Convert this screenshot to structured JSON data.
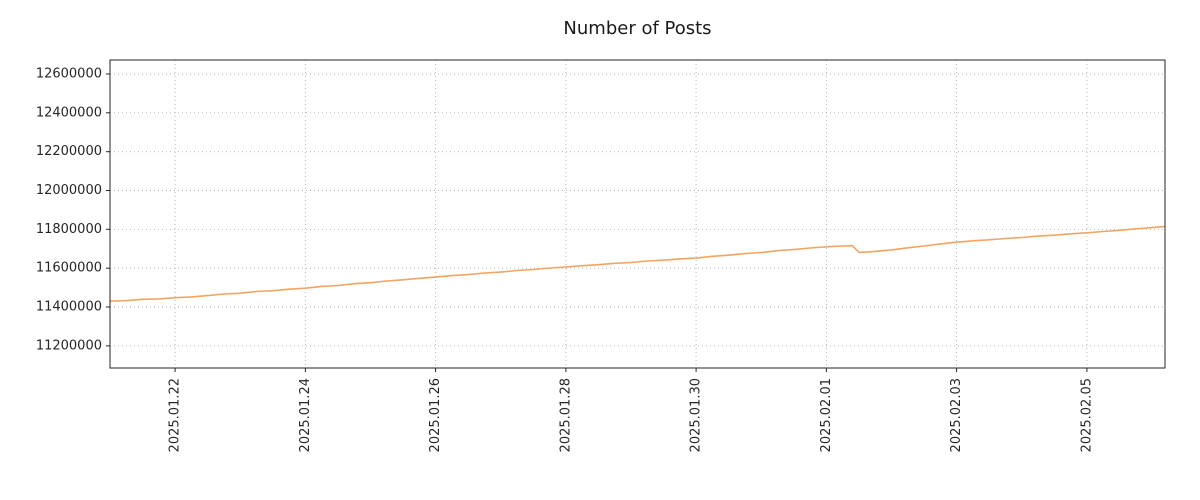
{
  "chart_data": {
    "type": "line",
    "title": "Number of Posts",
    "xlabel": "",
    "ylabel": "",
    "grid": "dotted",
    "legend": "none",
    "x_axis_note": "x values are days from plot left edge (left edge = 2025.01.21)",
    "xlim": [
      0,
      16.2
    ],
    "ylim": [
      11086000,
      12672000
    ],
    "x_ticks": [
      {
        "label": "2025.01.22",
        "x": 1
      },
      {
        "label": "2025.01.24",
        "x": 3
      },
      {
        "label": "2025.01.26",
        "x": 5
      },
      {
        "label": "2025.01.28",
        "x": 7
      },
      {
        "label": "2025.01.30",
        "x": 9
      },
      {
        "label": "2025.02.01",
        "x": 11
      },
      {
        "label": "2025.02.03",
        "x": 13
      },
      {
        "label": "2025.02.05",
        "x": 15
      }
    ],
    "y_ticks": [
      {
        "label": "11200000",
        "y": 11200000
      },
      {
        "label": "11400000",
        "y": 11400000
      },
      {
        "label": "11600000",
        "y": 11600000
      },
      {
        "label": "11800000",
        "y": 11800000
      },
      {
        "label": "12000000",
        "y": 12000000
      },
      {
        "label": "12200000",
        "y": 12200000
      },
      {
        "label": "12400000",
        "y": 12400000
      },
      {
        "label": "12600000",
        "y": 12600000
      }
    ],
    "series": [
      {
        "name": "Number of Posts",
        "color": "#f4a462",
        "points": [
          [
            0,
            11430000
          ],
          [
            0.25,
            11433000
          ],
          [
            0.5,
            11440000
          ],
          [
            0.75,
            11442000
          ],
          [
            1,
            11448000
          ],
          [
            1.25,
            11452000
          ],
          [
            1.5,
            11459000
          ],
          [
            1.75,
            11467000
          ],
          [
            2,
            11471000
          ],
          [
            2.25,
            11480000
          ],
          [
            2.5,
            11484000
          ],
          [
            2.75,
            11492000
          ],
          [
            3,
            11497000
          ],
          [
            3.25,
            11506000
          ],
          [
            3.5,
            11511000
          ],
          [
            3.75,
            11520000
          ],
          [
            4,
            11525000
          ],
          [
            4.25,
            11534000
          ],
          [
            4.5,
            11540000
          ],
          [
            4.75,
            11548000
          ],
          [
            5,
            11554000
          ],
          [
            5.25,
            11562000
          ],
          [
            5.5,
            11567000
          ],
          [
            5.75,
            11575000
          ],
          [
            6,
            11580000
          ],
          [
            6.25,
            11588000
          ],
          [
            6.5,
            11593000
          ],
          [
            6.75,
            11601000
          ],
          [
            7,
            11606000
          ],
          [
            7.25,
            11613000
          ],
          [
            7.5,
            11618000
          ],
          [
            7.75,
            11625000
          ],
          [
            8,
            11629000
          ],
          [
            8.25,
            11637000
          ],
          [
            8.5,
            11641000
          ],
          [
            8.75,
            11648000
          ],
          [
            9,
            11652000
          ],
          [
            9.25,
            11661000
          ],
          [
            9.5,
            11667000
          ],
          [
            9.75,
            11675000
          ],
          [
            10,
            11681000
          ],
          [
            10.25,
            11690000
          ],
          [
            10.5,
            11696000
          ],
          [
            10.75,
            11704000
          ],
          [
            11,
            11710000
          ],
          [
            11.25,
            11714000
          ],
          [
            11.4,
            11716000
          ],
          [
            11.5,
            11682000
          ],
          [
            11.65,
            11684000
          ],
          [
            11.8,
            11688000
          ],
          [
            12,
            11694000
          ],
          [
            12.25,
            11705000
          ],
          [
            12.5,
            11714000
          ],
          [
            12.75,
            11725000
          ],
          [
            13,
            11734000
          ],
          [
            13.25,
            11741000
          ],
          [
            13.5,
            11746000
          ],
          [
            13.75,
            11753000
          ],
          [
            14,
            11758000
          ],
          [
            14.25,
            11765000
          ],
          [
            14.5,
            11770000
          ],
          [
            14.75,
            11777000
          ],
          [
            15,
            11782000
          ],
          [
            15.25,
            11789000
          ],
          [
            15.5,
            11795000
          ],
          [
            15.75,
            11803000
          ],
          [
            16,
            11809000
          ],
          [
            16.2,
            11815000
          ]
        ]
      }
    ]
  }
}
